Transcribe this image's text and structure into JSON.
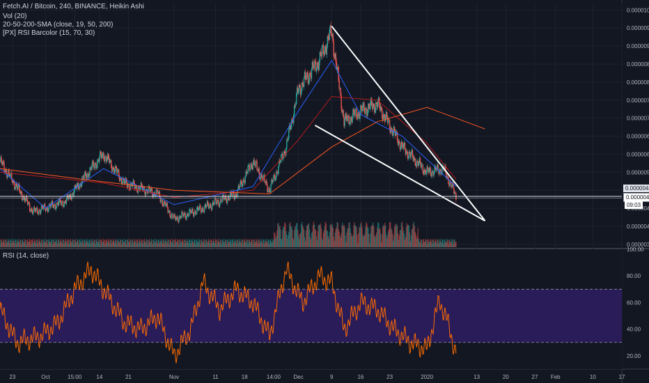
{
  "header": {
    "title": "Fetch.AI / Bitcoin, 240, BINANCE, Heikin Ashi",
    "vol_label": "Vol (20)",
    "sma_label": "20-50-200-SMA (close, 19, 50, 200)",
    "rsi_barcolor_label": "[PX] RSI Barcolor (15, 70, 30)",
    "rsi_label": "RSI (14, close)"
  },
  "colors": {
    "background": "#131722",
    "up": "#26a69a",
    "down": "#ef5350",
    "sma_fast": "#2962ff",
    "sma_mid": "#b71c1c",
    "sma_slow": "#ff5722",
    "rsi_line": "#ff6d00",
    "rsi_band": "#2a1b59",
    "wedge": "#ffffff"
  },
  "price_axis": {
    "ticks": [
      "0.00001000",
      "0.00000950",
      "0.00000900",
      "0.00000850",
      "0.00000800",
      "0.00000750",
      "0.00000700",
      "0.00000650",
      "0.00000600",
      "0.00000550",
      "0.00000500",
      "0.00000450",
      "0.00000400",
      "0.00000350"
    ],
    "current_price": "0.00000483",
    "crosshair_price": "0.00000480",
    "countdown": "09:03"
  },
  "rsi_axis": {
    "ticks": [
      "100.00",
      "80.00",
      "60.00",
      "40.00",
      "20.00"
    ]
  },
  "time_axis": {
    "ticks": [
      "23",
      "Oct",
      "15:00",
      "14",
      "21",
      "Nov",
      "11",
      "18",
      "14:00",
      "Dec",
      "9",
      "16",
      "23",
      "2020",
      "13",
      "20",
      "27",
      "Feb",
      "10",
      "17"
    ]
  },
  "chart_data": [
    {
      "type": "candlestick",
      "title": "Fetch.AI / Bitcoin, 240, BINANCE, Heikin Ashi",
      "ylim": [
        3.4e-06,
        1.02e-05
      ],
      "x_range": [
        "2019-09-20",
        "2020-02-17"
      ],
      "series_keypoints": [
        {
          "x": "2019-09-20",
          "close": 5.8e-06
        },
        {
          "x": "2019-09-28",
          "close": 4.4e-06
        },
        {
          "x": "2019-10-06",
          "close": 4.7e-06
        },
        {
          "x": "2019-10-12",
          "close": 5.6e-06
        },
        {
          "x": "2019-10-15",
          "close": 6e-06
        },
        {
          "x": "2019-10-20",
          "close": 5.2e-06
        },
        {
          "x": "2019-10-28",
          "close": 4.9e-06
        },
        {
          "x": "2019-11-01",
          "close": 4.2e-06
        },
        {
          "x": "2019-11-08",
          "close": 4.5e-06
        },
        {
          "x": "2019-11-16",
          "close": 4.9e-06
        },
        {
          "x": "2019-11-20",
          "close": 5.8e-06
        },
        {
          "x": "2019-11-24",
          "close": 5e-06
        },
        {
          "x": "2019-11-28",
          "close": 6.2e-06
        },
        {
          "x": "2019-12-01",
          "close": 7.8e-06
        },
        {
          "x": "2019-12-06",
          "close": 8.6e-06
        },
        {
          "x": "2019-12-09",
          "close": 9.4e-06
        },
        {
          "x": "2019-12-12",
          "close": 6.9e-06
        },
        {
          "x": "2019-12-16",
          "close": 7.2e-06
        },
        {
          "x": "2019-12-20",
          "close": 7.4e-06
        },
        {
          "x": "2019-12-26",
          "close": 6.2e-06
        },
        {
          "x": "2020-01-01",
          "close": 5.5e-06
        },
        {
          "x": "2020-01-05",
          "close": 5.6e-06
        },
        {
          "x": "2020-01-08",
          "close": 4.83e-06
        }
      ],
      "sma": [
        {
          "name": "SMA 19",
          "points": [
            [
              "2019-09-20",
              5.6e-06
            ],
            [
              "2019-10-01",
              4.5e-06
            ],
            [
              "2019-10-15",
              5.6e-06
            ],
            [
              "2019-11-01",
              4.6e-06
            ],
            [
              "2019-11-20",
              5.1e-06
            ],
            [
              "2019-12-01",
              7.2e-06
            ],
            [
              "2019-12-09",
              8.6e-06
            ],
            [
              "2019-12-16",
              7.1e-06
            ],
            [
              "2019-12-26",
              6.5e-06
            ],
            [
              "2020-01-08",
              5.1e-06
            ]
          ]
        },
        {
          "name": "SMA 50",
          "points": [
            [
              "2019-09-20",
              5.5e-06
            ],
            [
              "2019-10-15",
              5.2e-06
            ],
            [
              "2019-11-01",
              4.8e-06
            ],
            [
              "2019-11-20",
              5e-06
            ],
            [
              "2019-12-01",
              6.4e-06
            ],
            [
              "2019-12-09",
              7.6e-06
            ],
            [
              "2019-12-20",
              7.5e-06
            ],
            [
              "2020-01-01",
              6.3e-06
            ],
            [
              "2020-01-08",
              5.3e-06
            ]
          ]
        },
        {
          "name": "SMA 200",
          "points": [
            [
              "2019-09-20",
              5.6e-06
            ],
            [
              "2019-10-10",
              5.3e-06
            ],
            [
              "2019-11-01",
              5e-06
            ],
            [
              "2019-11-24",
              4.9e-06
            ],
            [
              "2019-12-09",
              6.2e-06
            ],
            [
              "2019-12-20",
              6.9e-06
            ],
            [
              "2020-01-01",
              7.3e-06
            ],
            [
              "2020-01-15",
              6.7e-06
            ]
          ]
        }
      ],
      "annotations": [
        {
          "type": "falling-wedge",
          "upper": [
            [
              "2019-12-09",
              9.55e-06
            ],
            [
              "2020-01-15",
              4.15e-06
            ]
          ],
          "lower": [
            [
              "2019-12-05",
              6.8e-06
            ],
            [
              "2020-01-15",
              4.15e-06
            ]
          ]
        }
      ],
      "current_price": 4.83e-06
    },
    {
      "type": "line",
      "title": "RSI (14, close)",
      "ylim": [
        10,
        100
      ],
      "bands": [
        30,
        70
      ],
      "points": [
        [
          "2019-09-20",
          55
        ],
        [
          "2019-09-24",
          30
        ],
        [
          "2019-09-30",
          35
        ],
        [
          "2019-10-04",
          45
        ],
        [
          "2019-10-08",
          70
        ],
        [
          "2019-10-12",
          85
        ],
        [
          "2019-10-16",
          65
        ],
        [
          "2019-10-20",
          45
        ],
        [
          "2019-10-24",
          40
        ],
        [
          "2019-10-28",
          50
        ],
        [
          "2019-11-01",
          20
        ],
        [
          "2019-11-05",
          40
        ],
        [
          "2019-11-08",
          75
        ],
        [
          "2019-11-12",
          55
        ],
        [
          "2019-11-16",
          70
        ],
        [
          "2019-11-20",
          60
        ],
        [
          "2019-11-24",
          35
        ],
        [
          "2019-11-28",
          85
        ],
        [
          "2019-12-02",
          60
        ],
        [
          "2019-12-06",
          80
        ],
        [
          "2019-12-09",
          75
        ],
        [
          "2019-12-12",
          40
        ],
        [
          "2019-12-16",
          60
        ],
        [
          "2019-12-20",
          55
        ],
        [
          "2019-12-24",
          40
        ],
        [
          "2019-12-28",
          30
        ],
        [
          "2020-01-01",
          25
        ],
        [
          "2020-01-04",
          62
        ],
        [
          "2020-01-06",
          45
        ],
        [
          "2020-01-08",
          22
        ]
      ]
    }
  ]
}
